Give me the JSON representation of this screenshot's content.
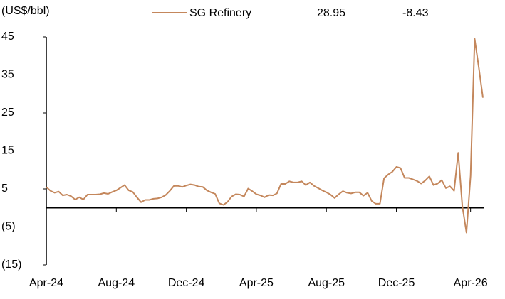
{
  "chart_data": {
    "type": "line",
    "y_label": "(US$/bbl)",
    "annotations": [
      "28.95",
      "-8.43"
    ],
    "x": [
      "Apr-24",
      null,
      null,
      null,
      null,
      null,
      null,
      null,
      null,
      null,
      null,
      null,
      null,
      null,
      null,
      null,
      null,
      "Aug-24",
      null,
      null,
      null,
      null,
      null,
      null,
      null,
      null,
      null,
      null,
      null,
      null,
      null,
      null,
      null,
      null,
      "Dec-24",
      null,
      null,
      null,
      null,
      null,
      null,
      null,
      null,
      null,
      null,
      null,
      null,
      null,
      null,
      null,
      null,
      "Apr-25",
      null,
      null,
      null,
      null,
      null,
      null,
      null,
      null,
      null,
      null,
      null,
      null,
      null,
      null,
      null,
      null,
      "Aug-25",
      null,
      null,
      null,
      null,
      null,
      null,
      null,
      null,
      null,
      null,
      null,
      null,
      null,
      null,
      null,
      null,
      "Dec-25",
      null,
      null,
      null,
      null,
      null,
      null,
      null,
      null,
      null,
      null,
      null,
      null,
      null,
      null,
      null,
      null,
      null,
      "Apr-26",
      null,
      null,
      null
    ],
    "series": [
      {
        "name": "SG Refinery",
        "color": "#c4875c",
        "values": [
          5.5,
          4.5,
          4,
          4.3,
          3.3,
          3.5,
          3.1,
          2.2,
          2.8,
          2.2,
          3.5,
          3.5,
          3.5,
          3.6,
          3.9,
          3.7,
          4.2,
          4.6,
          5.3,
          6,
          4.6,
          4.2,
          2.8,
          1.5,
          2.1,
          2.1,
          2.4,
          2.5,
          2.8,
          3.4,
          4.5,
          5.8,
          5.8,
          5.5,
          5.9,
          6.2,
          6,
          5.6,
          5.5,
          4.6,
          4.1,
          3.7,
          1.2,
          0.8,
          1.6,
          3,
          3.6,
          3.5,
          3,
          5.1,
          4.4,
          3.6,
          3.3,
          2.8,
          3.4,
          3.3,
          3.8,
          6.3,
          6.3,
          7,
          6.7,
          6.7,
          7,
          6,
          6.7,
          5.8,
          5.2,
          4.6,
          4.1,
          3.5,
          2.6,
          3.6,
          4.4,
          4,
          3.8,
          4.1,
          4.1,
          3.2,
          4,
          1.8,
          1.1,
          1.1,
          7.8,
          8.8,
          9.5,
          10.8,
          10.5,
          7.9,
          7.9,
          7.5,
          7.1,
          6.4,
          7.2,
          8.3,
          6,
          6.4,
          7.3,
          5.2,
          5.7,
          4.5,
          14.5,
          0.5,
          -6.5,
          8.5,
          44.5,
          37,
          29
        ]
      }
    ],
    "ylim": [
      -15,
      45
    ],
    "yticks": [
      45,
      35,
      25,
      15,
      5,
      {
        "value": -5,
        "label": "(5)"
      },
      {
        "value": -15,
        "label": "(15)"
      }
    ]
  }
}
